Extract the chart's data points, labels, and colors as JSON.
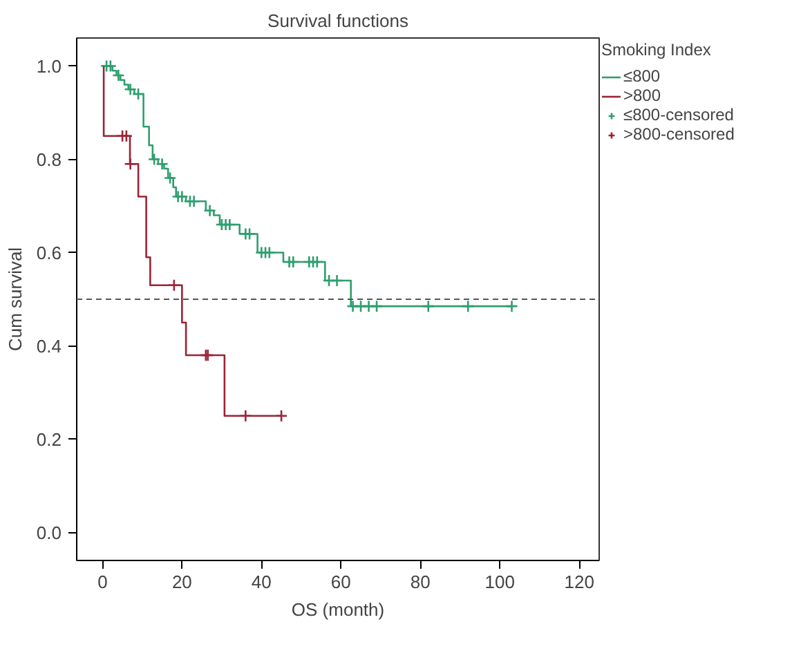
{
  "chart_data": {
    "type": "step",
    "title": "Survival functions",
    "xlabel": "OS (month)",
    "ylabel": "Cum survival",
    "legend_title": "Smoking Index",
    "legend": "right",
    "grid": false,
    "xlim": [
      -6.5,
      125
    ],
    "xticks": [
      0,
      20,
      40,
      60,
      80,
      100,
      120
    ],
    "ylim": [
      -0.06,
      1.06
    ],
    "yticks": [
      {
        "value": 0,
        "label": "0.0"
      },
      0.2,
      0.4,
      0.6,
      0.8,
      {
        "value": 1,
        "label": "1.0"
      }
    ],
    "ref_lines": [
      {
        "axis": "y",
        "value": 0.5,
        "label": null,
        "color": "#555555",
        "line_style": "dashed"
      }
    ],
    "series": [
      {
        "name": "≤800",
        "color": "#2e9e6e",
        "x": [
          0,
          2.5,
          3.5,
          4.5,
          5.5,
          6.5,
          8,
          10.3,
          11.7,
          12.6,
          14,
          15.5,
          16.5,
          17.8,
          18.5,
          21,
          26,
          28,
          29.5,
          34.5,
          39,
          45.5,
          56,
          62.5,
          103
        ],
        "values": [
          1.0,
          0.99,
          0.98,
          0.97,
          0.96,
          0.95,
          0.94,
          0.87,
          0.83,
          0.8,
          0.79,
          0.78,
          0.76,
          0.74,
          0.72,
          0.71,
          0.69,
          0.68,
          0.66,
          0.64,
          0.6,
          0.58,
          0.54,
          0.485,
          0.485
        ]
      },
      {
        "name": ">800",
        "color": "#9b2335",
        "x": [
          0,
          0.3,
          6.9,
          9,
          11,
          12,
          20,
          21,
          30.7,
          45
        ],
        "values": [
          1.0,
          0.85,
          0.79,
          0.72,
          0.59,
          0.53,
          0.45,
          0.38,
          0.25,
          0.25
        ]
      },
      {
        "name": "≤800-censored",
        "type": "scatter",
        "marker": "cross",
        "color": "#2e9e6e",
        "x": [
          1,
          2,
          4,
          7,
          9,
          13,
          15,
          17,
          19,
          20,
          22,
          23,
          27,
          30,
          31,
          32,
          36,
          37,
          40,
          41,
          42,
          47,
          48,
          52,
          53,
          54,
          57,
          59,
          63,
          65,
          67,
          69,
          82,
          92,
          103
        ],
        "values": [
          1.0,
          1.0,
          0.98,
          0.95,
          0.94,
          0.8,
          0.79,
          0.76,
          0.72,
          0.72,
          0.71,
          0.71,
          0.69,
          0.66,
          0.66,
          0.66,
          0.64,
          0.64,
          0.6,
          0.6,
          0.6,
          0.58,
          0.58,
          0.58,
          0.58,
          0.58,
          0.54,
          0.54,
          0.485,
          0.485,
          0.485,
          0.485,
          0.485,
          0.485,
          0.485
        ]
      },
      {
        "name": ">800-censored",
        "type": "scatter",
        "marker": "cross",
        "color": "#9b2335",
        "x": [
          5,
          6,
          7,
          18,
          26,
          26.5,
          36,
          45
        ],
        "values": [
          0.85,
          0.85,
          0.79,
          0.53,
          0.38,
          0.38,
          0.25,
          0.25
        ]
      }
    ]
  }
}
